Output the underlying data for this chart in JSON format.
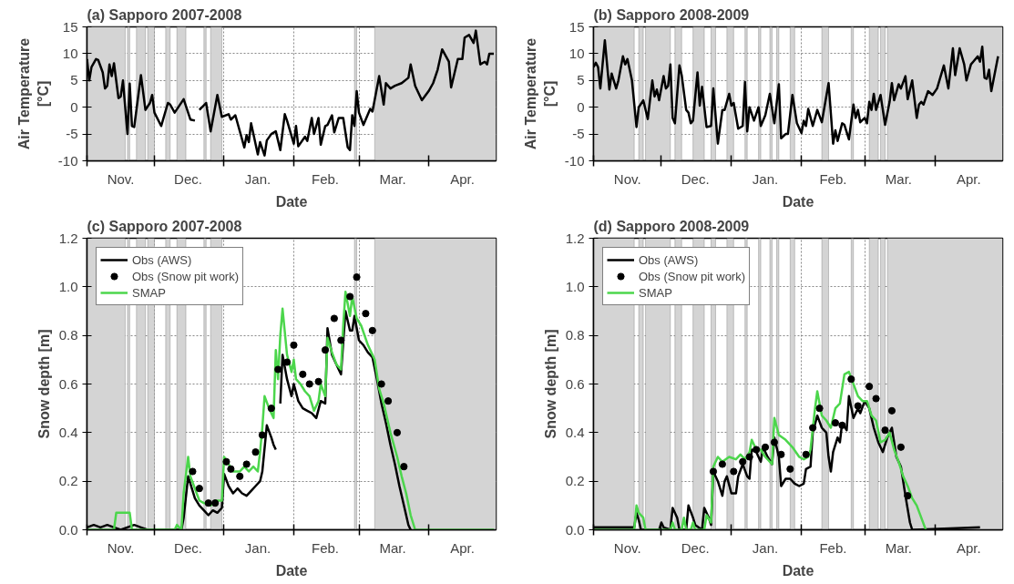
{
  "chart_data": [
    {
      "type": "line",
      "title": "(a) Sapporo 2007-2008",
      "xlabel": "Date",
      "ylabel": "Air Temperature\n[°C]",
      "grid": true,
      "xlim": [
        "2007-11-01",
        "2008-05-01"
      ],
      "xticks": [
        {
          "value": "2007-11-01",
          "label": null
        },
        {
          "value": "2007-12-01",
          "label": null
        },
        {
          "value": "2008-01-01",
          "label": null
        },
        {
          "value": "2008-02-01",
          "label": null
        },
        {
          "value": "2008-03-01",
          "label": null
        },
        {
          "value": "2008-04-01",
          "label": null
        },
        {
          "value": "2007-11-16",
          "label": "Nov."
        },
        {
          "value": "2007-12-16",
          "label": "Dec."
        },
        {
          "value": "2008-01-16",
          "label": "Jan."
        },
        {
          "value": "2008-02-15",
          "label": "Feb."
        },
        {
          "value": "2008-03-16",
          "label": "Mar."
        },
        {
          "value": "2008-04-16",
          "label": "Apr."
        }
      ],
      "ylim": [
        -10,
        15
      ],
      "yticks": [
        -10,
        -5,
        0,
        5,
        10,
        15
      ],
      "bands": [
        {
          "axis": "x",
          "from": "2007-11-01",
          "to": "2007-11-18",
          "color": "#d4d4d4"
        },
        {
          "axis": "x",
          "from": "2007-11-19",
          "to": "2007-11-20",
          "color": "#d4d4d4"
        },
        {
          "axis": "x",
          "from": "2007-11-23",
          "to": "2007-11-27",
          "color": "#d4d4d4"
        },
        {
          "axis": "x",
          "from": "2007-11-28",
          "to": "2007-12-01",
          "color": "#d4d4d4"
        },
        {
          "axis": "x",
          "from": "2007-12-06",
          "to": "2007-12-08",
          "color": "#d4d4d4"
        },
        {
          "axis": "x",
          "from": "2007-12-11",
          "to": "2007-12-15",
          "color": "#d4d4d4"
        },
        {
          "axis": "x",
          "from": "2007-12-23",
          "to": "2007-12-24",
          "color": "#d4d4d4"
        },
        {
          "axis": "x",
          "from": "2007-12-26",
          "to": "2007-12-31",
          "color": "#d4d4d4"
        },
        {
          "axis": "x",
          "from": "2008-02-28",
          "to": "2008-02-29",
          "color": "#d4d4d4"
        },
        {
          "axis": "x",
          "from": "2008-03-08",
          "to": "2008-05-01",
          "color": "#d4d4d4"
        }
      ],
      "series": [
        {
          "color": "#000000",
          "x": [
            "2007-11-01",
            "2007-11-02",
            "2007-11-03",
            "2007-11-05",
            "2007-11-06",
            "2007-11-08",
            "2007-11-09",
            "2007-11-10",
            "2007-11-11",
            "2007-11-12",
            "2007-11-13",
            "2007-11-15",
            "2007-11-16",
            "2007-11-17",
            "2007-11-19",
            "2007-11-20",
            "2007-11-21",
            "2007-11-22",
            "2007-11-25",
            "2007-11-27",
            "2007-11-29",
            "2007-11-30",
            "2007-12-01",
            "2007-12-04",
            "2007-12-07",
            "2007-12-08",
            "2007-12-10",
            "2007-12-14",
            "2007-12-17",
            "2007-12-19",
            "2007-12-20",
            "2007-12-21",
            "2007-12-24",
            "2007-12-26",
            "2007-12-29",
            "2007-12-31",
            "2008-01-03",
            "2008-01-04",
            "2008-01-06",
            "2008-01-10",
            "2008-01-11",
            "2008-01-12",
            "2008-01-13",
            "2008-01-16",
            "2008-01-17",
            "2008-01-19",
            "2008-01-20",
            "2008-01-22",
            "2008-01-24",
            "2008-01-26",
            "2008-01-28",
            "2008-01-29",
            "2008-02-01",
            "2008-02-02",
            "2008-02-03",
            "2008-02-06",
            "2008-02-07",
            "2008-02-09",
            "2008-02-10",
            "2008-02-12",
            "2008-02-13",
            "2008-02-15",
            "2008-02-16",
            "2008-02-18",
            "2008-02-19",
            "2008-02-21",
            "2008-02-23",
            "2008-02-25",
            "2008-02-26",
            "2008-02-27",
            "2008-02-28",
            "2008-02-29",
            "2008-03-01",
            "2008-03-03",
            "2008-03-06",
            "2008-03-07",
            "2008-03-10",
            "2008-03-12",
            "2008-03-13",
            "2008-03-15",
            "2008-03-17",
            "2008-03-20",
            "2008-03-23",
            "2008-03-24",
            "2008-03-26",
            "2008-03-29",
            "2008-04-01",
            "2008-04-03",
            "2008-04-05",
            "2008-04-07",
            "2008-04-10",
            "2008-04-11",
            "2008-04-14",
            "2008-04-16",
            "2008-04-17",
            "2008-04-19",
            "2008-04-21",
            "2008-04-22",
            "2008-04-24",
            "2008-04-26",
            "2008-04-27",
            "2008-04-28",
            "2008-04-30"
          ],
          "values": [
            9,
            5,
            7.5,
            9,
            8.8,
            6.5,
            3.5,
            4,
            8,
            5.8,
            8.2,
            1.7,
            2,
            5,
            -5,
            4.4,
            -3.5,
            -3.7,
            6,
            -0.5,
            0.8,
            2.3,
            -1,
            -3.5,
            0.8,
            0.5,
            -1,
            1.5,
            -2.3,
            -2.5,
            null,
            -0.5,
            0.8,
            -4.5,
            2.3,
            -1.8,
            -1.3,
            -2.3,
            -1.5,
            -7.5,
            -5.2,
            -6.5,
            -3,
            -8.8,
            -6.5,
            -9,
            -6.2,
            -5,
            -4.5,
            -8,
            -1.3,
            -2.5,
            -6.8,
            -3.5,
            -7.3,
            -5.5,
            -6.3,
            -2,
            -5,
            -2,
            -7,
            -3.5,
            -3.3,
            -1.5,
            -4.7,
            -2,
            -2,
            -7.5,
            -8,
            -1.5,
            -3.5,
            3,
            -1,
            -3.3,
            -0.3,
            -0.8,
            5.8,
            0.5,
            4.5,
            3.5,
            4,
            4.5,
            5.5,
            8,
            4,
            1.3,
            3,
            4.5,
            7,
            10.8,
            8.5,
            3.7,
            9,
            9,
            13,
            13.5,
            12,
            14.3,
            8,
            8.5,
            8,
            10,
            10
          ]
        }
      ]
    },
    {
      "type": "line",
      "title": "(b) Sapporo 2008-2009",
      "xlabel": "Date",
      "ylabel": "Air Temperature\n[°C]",
      "grid": true,
      "xlim": [
        "2008-11-01",
        "2009-05-01"
      ],
      "xticks": [
        {
          "value": "2008-11-01",
          "label": null
        },
        {
          "value": "2008-12-01",
          "label": null
        },
        {
          "value": "2009-01-01",
          "label": null
        },
        {
          "value": "2009-02-01",
          "label": null
        },
        {
          "value": "2009-03-01",
          "label": null
        },
        {
          "value": "2009-04-01",
          "label": null
        },
        {
          "value": "2008-11-16",
          "label": "Nov."
        },
        {
          "value": "2008-12-16",
          "label": "Dec."
        },
        {
          "value": "2009-01-16",
          "label": "Jan."
        },
        {
          "value": "2009-02-15",
          "label": "Feb."
        },
        {
          "value": "2009-03-16",
          "label": "Mar."
        },
        {
          "value": "2009-04-16",
          "label": "Apr."
        }
      ],
      "ylim": [
        -10,
        15
      ],
      "yticks": [
        -10,
        -5,
        0,
        5,
        10,
        15
      ],
      "bands": [
        {
          "axis": "x",
          "from": "2008-11-01",
          "to": "2008-11-19",
          "color": "#d4d4d4"
        },
        {
          "axis": "x",
          "from": "2008-11-21",
          "to": "2008-11-23",
          "color": "#d4d4d4"
        },
        {
          "axis": "x",
          "from": "2008-11-24",
          "to": "2008-12-05",
          "color": "#d4d4d4"
        },
        {
          "axis": "x",
          "from": "2008-12-07",
          "to": "2008-12-10",
          "color": "#d4d4d4"
        },
        {
          "axis": "x",
          "from": "2008-12-15",
          "to": "2008-12-20",
          "color": "#d4d4d4"
        },
        {
          "axis": "x",
          "from": "2008-12-23",
          "to": "2008-12-25",
          "color": "#d4d4d4"
        },
        {
          "axis": "x",
          "from": "2008-12-30",
          "to": "2009-01-02",
          "color": "#d4d4d4"
        },
        {
          "axis": "x",
          "from": "2009-01-07",
          "to": "2009-01-08",
          "color": "#d4d4d4"
        },
        {
          "axis": "x",
          "from": "2009-01-13",
          "to": "2009-01-14",
          "color": "#d4d4d4"
        },
        {
          "axis": "x",
          "from": "2009-01-18",
          "to": "2009-01-19",
          "color": "#d4d4d4"
        },
        {
          "axis": "x",
          "from": "2009-01-21",
          "to": "2009-01-22",
          "color": "#d4d4d4"
        },
        {
          "axis": "x",
          "from": "2009-01-27",
          "to": "2009-01-29",
          "color": "#d4d4d4"
        },
        {
          "axis": "x",
          "from": "2009-02-10",
          "to": "2009-02-13",
          "color": "#d4d4d4"
        },
        {
          "axis": "x",
          "from": "2009-02-23",
          "to": "2009-02-24",
          "color": "#d4d4d4"
        },
        {
          "axis": "x",
          "from": "2009-03-03",
          "to": "2009-03-07",
          "color": "#d4d4d4"
        },
        {
          "axis": "x",
          "from": "2009-03-08",
          "to": "2009-03-10",
          "color": "#d4d4d4"
        },
        {
          "axis": "x",
          "from": "2009-03-11",
          "to": "2009-05-01",
          "color": "#d4d4d4"
        }
      ],
      "series": [
        {
          "color": "#000000",
          "x": [
            "2008-11-01",
            "2008-11-02",
            "2008-11-03",
            "2008-11-04",
            "2008-11-06",
            "2008-11-08",
            "2008-11-09",
            "2008-11-11",
            "2008-11-12",
            "2008-11-14",
            "2008-11-15",
            "2008-11-16",
            "2008-11-18",
            "2008-11-20",
            "2008-11-21",
            "2008-11-23",
            "2008-11-25",
            "2008-11-27",
            "2008-11-28",
            "2008-11-29",
            "2008-11-30",
            "2008-12-02",
            "2008-12-03",
            "2008-12-04",
            "2008-12-05",
            "2008-12-06",
            "2008-12-07",
            "2008-12-09",
            "2008-12-10",
            "2008-12-12",
            "2008-12-13",
            "2008-12-14",
            "2008-12-15",
            "2008-12-17",
            "2008-12-18",
            "2008-12-19",
            "2008-12-21",
            "2008-12-23",
            "2008-12-24",
            "2008-12-26",
            "2008-12-28",
            "2008-12-29",
            "2008-12-31",
            "2009-01-01",
            "2009-01-02",
            "2009-01-04",
            "2009-01-06",
            "2009-01-07",
            "2009-01-08",
            "2009-01-09",
            "2009-01-11",
            "2009-01-13",
            "2009-01-14",
            "2009-01-16",
            "2009-01-18",
            "2009-01-20",
            "2009-01-22",
            "2009-01-23",
            "2009-01-25",
            "2009-01-26",
            "2009-01-28",
            "2009-01-30",
            "2009-02-01",
            "2009-02-02",
            "2009-02-03",
            "2009-02-04",
            "2009-02-06",
            "2009-02-08",
            "2009-02-10",
            "2009-02-13",
            "2009-02-15",
            "2009-02-16",
            "2009-02-17",
            "2009-02-19",
            "2009-02-20",
            "2009-02-22",
            "2009-02-24",
            "2009-02-25",
            "2009-02-26",
            "2009-02-27",
            "2009-03-01",
            "2009-03-02",
            "2009-03-03",
            "2009-03-04",
            "2009-03-05",
            "2009-03-06",
            "2009-03-08",
            "2009-03-10",
            "2009-03-12",
            "2009-03-13",
            "2009-03-14",
            "2009-03-16",
            "2009-03-17",
            "2009-03-19",
            "2009-03-20",
            "2009-03-22",
            "2009-03-24",
            "2009-03-25",
            "2009-03-26",
            "2009-03-27",
            "2009-03-29",
            "2009-03-31",
            "2009-04-02",
            "2009-04-05",
            "2009-04-07",
            "2009-04-09",
            "2009-04-10",
            "2009-04-12",
            "2009-04-14",
            "2009-04-15",
            "2009-04-17",
            "2009-04-18",
            "2009-04-20",
            "2009-04-21",
            "2009-04-22",
            "2009-04-23",
            "2009-04-24",
            "2009-04-25",
            "2009-04-26",
            "2009-04-29"
          ],
          "values": [
            7.5,
            8.3,
            7.5,
            3.5,
            12.5,
            3.3,
            6.3,
            3.5,
            5,
            9.5,
            8,
            9,
            5,
            -3.7,
            0,
            1.3,
            -2.2,
            5,
            2,
            3.3,
            1.3,
            5.8,
            3.5,
            4,
            8,
            -2,
            -3,
            7.8,
            6,
            -0.5,
            -1,
            -3,
            -2.5,
            6.5,
            0.3,
            3.8,
            -3.7,
            -3.5,
            3.5,
            -6.8,
            -0.5,
            -0.5,
            2.5,
            0.3,
            0.8,
            -4,
            -3.5,
            4.7,
            -4.5,
            0,
            -2.5,
            0,
            -3.5,
            -1.5,
            2.5,
            -3,
            4.3,
            -5.8,
            -5,
            -5,
            2.3,
            -3,
            -4.8,
            -2.5,
            -3.5,
            -0.3,
            -3.5,
            -0.5,
            -2.8,
            4.5,
            -6.8,
            -4.3,
            -6.3,
            -3,
            -3.3,
            -6,
            0.5,
            -2,
            -0.5,
            -2.8,
            -2,
            -3,
            1,
            -0.5,
            2.5,
            -0.5,
            2.3,
            -3.3,
            1,
            4.5,
            1.3,
            4.3,
            3.5,
            5.8,
            1.5,
            5,
            -2,
            0.5,
            1,
            0.5,
            3,
            2.3,
            3.5,
            7.8,
            3.5,
            11,
            6,
            11,
            8,
            5,
            8,
            8.5,
            9.5,
            8.5,
            11.3,
            5.5,
            5.3,
            7,
            3,
            9.5
          ]
        }
      ]
    },
    {
      "type": "line",
      "title": "(c) Sapporo 2007-2008",
      "xlabel": "Date",
      "ylabel": "Snow depth [m]",
      "grid": true,
      "legend": "top left",
      "xlim": [
        "2007-11-01",
        "2008-05-01"
      ],
      "xticks": [
        {
          "value": "2007-11-01",
          "label": null
        },
        {
          "value": "2007-12-01",
          "label": null
        },
        {
          "value": "2008-01-01",
          "label": null
        },
        {
          "value": "2008-02-01",
          "label": null
        },
        {
          "value": "2008-03-01",
          "label": null
        },
        {
          "value": "2008-04-01",
          "label": null
        },
        {
          "value": "2007-11-16",
          "label": "Nov."
        },
        {
          "value": "2007-12-16",
          "label": "Dec."
        },
        {
          "value": "2008-01-16",
          "label": "Jan."
        },
        {
          "value": "2008-02-15",
          "label": "Feb."
        },
        {
          "value": "2008-03-16",
          "label": "Mar."
        },
        {
          "value": "2008-04-16",
          "label": "Apr."
        }
      ],
      "ylim": [
        0,
        1.2
      ],
      "yticks": [
        {
          "value": 0,
          "label": "0.0"
        },
        {
          "value": 0.2,
          "label": "0.2"
        },
        {
          "value": 0.4,
          "label": "0.4"
        },
        {
          "value": 0.6,
          "label": "0.6"
        },
        {
          "value": 0.8,
          "label": "0.8"
        },
        {
          "value": 1,
          "label": "1.0"
        },
        {
          "value": 1.2,
          "label": "1.2"
        }
      ],
      "bands": [
        {
          "axis": "x",
          "from": "2007-11-01",
          "to": "2007-11-18",
          "color": "#d4d4d4"
        },
        {
          "axis": "x",
          "from": "2007-11-19",
          "to": "2007-11-20",
          "color": "#d4d4d4"
        },
        {
          "axis": "x",
          "from": "2007-11-23",
          "to": "2007-11-27",
          "color": "#d4d4d4"
        },
        {
          "axis": "x",
          "from": "2007-11-28",
          "to": "2007-12-01",
          "color": "#d4d4d4"
        },
        {
          "axis": "x",
          "from": "2007-12-06",
          "to": "2007-12-08",
          "color": "#d4d4d4"
        },
        {
          "axis": "x",
          "from": "2007-12-11",
          "to": "2007-12-15",
          "color": "#d4d4d4"
        },
        {
          "axis": "x",
          "from": "2007-12-23",
          "to": "2007-12-24",
          "color": "#d4d4d4"
        },
        {
          "axis": "x",
          "from": "2007-12-26",
          "to": "2007-12-31",
          "color": "#d4d4d4"
        },
        {
          "axis": "x",
          "from": "2008-02-28",
          "to": "2008-02-29",
          "color": "#d4d4d4"
        },
        {
          "axis": "x",
          "from": "2008-03-08",
          "to": "2008-05-01",
          "color": "#d4d4d4"
        }
      ],
      "series": [
        {
          "name": "Obs (AWS)",
          "color": "#000000",
          "x": [
            "2007-11-01",
            "2007-11-04",
            "2007-11-07",
            "2007-11-10",
            "2007-11-13",
            "2007-11-16",
            "2007-11-22",
            "2007-11-25",
            "2007-11-28",
            "2007-12-13",
            "2007-12-14",
            "2007-12-16",
            "2007-12-19",
            "2007-12-21",
            "2007-12-23",
            "2007-12-25",
            "2007-12-27",
            "2007-12-29",
            "2007-12-31",
            "2008-01-01",
            "2008-01-03",
            "2008-01-05",
            "2008-01-07",
            "2008-01-09",
            "2008-01-11",
            "2008-01-13",
            "2008-01-15",
            "2008-01-17",
            "2008-01-18",
            "2008-01-20",
            "2008-01-22",
            "2008-01-23",
            "2008-01-24",
            "2008-01-25",
            "2008-01-26",
            "2008-01-27",
            "2008-01-29",
            "2008-01-31",
            "2008-02-01",
            "2008-02-03",
            "2008-02-05",
            "2008-02-07",
            "2008-02-09",
            "2008-02-11",
            "2008-02-13",
            "2008-02-15",
            "2008-02-16",
            "2008-02-18",
            "2008-02-20",
            "2008-02-22",
            "2008-02-24",
            "2008-02-26",
            "2008-02-27",
            "2008-02-28",
            "2008-03-01",
            "2008-03-03",
            "2008-03-05",
            "2008-03-07",
            "2008-03-09",
            "2008-03-11",
            "2008-03-13",
            "2008-03-15",
            "2008-03-17",
            "2008-03-19",
            "2008-03-21",
            "2008-03-23",
            "2008-03-24"
          ],
          "values": [
            0.01,
            0.02,
            0.01,
            0.02,
            0.01,
            0,
            0.02,
            0.01,
            0,
            0,
            0.05,
            0.22,
            0.13,
            0.1,
            0.08,
            0.06,
            0.08,
            0.07,
            0.09,
            0.23,
            0.18,
            0.15,
            0.17,
            0.15,
            0.14,
            0.16,
            0.18,
            0.2,
            0.24,
            0.43,
            0.38,
            0.35,
            0.33,
            null,
            0.52,
            0.72,
            0.62,
            0.55,
            0.6,
            0.53,
            0.5,
            0.49,
            0.48,
            0.46,
            0.53,
            0.52,
            0.83,
            0.72,
            0.68,
            0.64,
            0.9,
            0.82,
            0.82,
            0.88,
            0.78,
            0.76,
            0.73,
            0.71,
            0.62,
            0.52,
            0.44,
            0.35,
            0.27,
            0.18,
            0.1,
            0.02,
            0
          ]
        },
        {
          "name": "Obs (Snow pit work)",
          "type": "scatter",
          "marker": "circle",
          "color": "#000000",
          "x": [
            "2007-12-18",
            "2007-12-21",
            "2007-12-25",
            "2007-12-28",
            "2008-01-02",
            "2008-01-04",
            "2008-01-08",
            "2008-01-11",
            "2008-01-15",
            "2008-01-18",
            "2008-01-22",
            "2008-01-25",
            "2008-01-29",
            "2008-02-01",
            "2008-02-05",
            "2008-02-08",
            "2008-02-12",
            "2008-02-15",
            "2008-02-19",
            "2008-02-22",
            "2008-02-26",
            "2008-02-29",
            "2008-03-04",
            "2008-03-07",
            "2008-03-11",
            "2008-03-14",
            "2008-03-18",
            "2008-03-21"
          ],
          "values": [
            0.24,
            0.17,
            0.11,
            0.11,
            0.28,
            0.25,
            0.22,
            0.27,
            0.32,
            0.39,
            0.5,
            0.66,
            0.69,
            0.76,
            0.64,
            0.6,
            0.61,
            0.74,
            0.87,
            0.78,
            0.96,
            1.04,
            0.89,
            0.82,
            0.6,
            0.53,
            0.4,
            0.26
          ]
        },
        {
          "name": "SMAP",
          "color": "#4cd64c",
          "x": [
            "2007-11-01",
            "2007-11-13",
            "2007-11-14",
            "2007-11-15",
            "2007-11-20",
            "2007-11-21",
            "2007-12-10",
            "2007-12-11",
            "2007-12-13",
            "2007-12-14",
            "2007-12-16",
            "2007-12-17",
            "2007-12-19",
            "2007-12-21",
            "2007-12-23",
            "2007-12-26",
            "2007-12-28",
            "2007-12-31",
            "2008-01-01",
            "2008-01-03",
            "2008-01-05",
            "2008-01-08",
            "2008-01-10",
            "2008-01-12",
            "2008-01-14",
            "2008-01-16",
            "2008-01-17",
            "2008-01-18",
            "2008-01-19",
            "2008-01-21",
            "2008-01-23",
            "2008-01-24",
            "2008-01-25",
            "2008-01-26",
            "2008-01-27",
            "2008-01-29",
            "2008-01-31",
            "2008-02-01",
            "2008-02-02",
            "2008-02-04",
            "2008-02-06",
            "2008-02-08",
            "2008-02-10",
            "2008-02-12",
            "2008-02-13",
            "2008-02-15",
            "2008-02-16",
            "2008-02-18",
            "2008-02-20",
            "2008-02-22",
            "2008-02-23",
            "2008-02-24",
            "2008-02-26",
            "2008-02-27",
            "2008-02-29",
            "2008-03-02",
            "2008-03-05",
            "2008-03-08",
            "2008-03-10",
            "2008-03-12",
            "2008-03-15",
            "2008-03-18",
            "2008-03-20",
            "2008-03-22",
            "2008-03-24",
            "2008-03-26",
            "2008-04-30"
          ],
          "values": [
            0,
            0,
            0.07,
            0.07,
            0.07,
            0,
            0,
            0.02,
            0,
            0.15,
            0.3,
            0.22,
            0.17,
            0.12,
            0.11,
            0.1,
            0.12,
            0.12,
            0.3,
            0.27,
            0.24,
            0.24,
            0.26,
            0.24,
            0.26,
            0.24,
            0.32,
            0.42,
            0.55,
            0.5,
            0.46,
            0.74,
            0.62,
            0.8,
            0.91,
            0.72,
            0.65,
            0.7,
            0.62,
            0.6,
            0.57,
            0.55,
            0.49,
            0.53,
            0.6,
            0.55,
            0.79,
            0.73,
            0.68,
            0.66,
            0.84,
            0.98,
            0.88,
            0.96,
            0.87,
            0.84,
            0.76,
            0.7,
            0.58,
            0.52,
            0.4,
            0.3,
            0.22,
            0.15,
            0.06,
            0,
            0
          ]
        }
      ]
    },
    {
      "type": "line",
      "title": "(d) Sapporo 2008-2009",
      "xlabel": "Date",
      "ylabel": "Snow depth [m]",
      "grid": true,
      "legend": "top left",
      "xlim": [
        "2008-11-01",
        "2009-05-01"
      ],
      "xticks": [
        {
          "value": "2008-11-01",
          "label": null
        },
        {
          "value": "2008-12-01",
          "label": null
        },
        {
          "value": "2009-01-01",
          "label": null
        },
        {
          "value": "2009-02-01",
          "label": null
        },
        {
          "value": "2009-03-01",
          "label": null
        },
        {
          "value": "2009-04-01",
          "label": null
        },
        {
          "value": "2008-11-16",
          "label": "Nov."
        },
        {
          "value": "2008-12-16",
          "label": "Dec."
        },
        {
          "value": "2009-01-16",
          "label": "Jan."
        },
        {
          "value": "2009-02-15",
          "label": "Feb."
        },
        {
          "value": "2009-03-16",
          "label": "Mar."
        },
        {
          "value": "2009-04-16",
          "label": "Apr."
        }
      ],
      "ylim": [
        0,
        1.2
      ],
      "yticks": [
        {
          "value": 0,
          "label": "0.0"
        },
        {
          "value": 0.2,
          "label": "0.2"
        },
        {
          "value": 0.4,
          "label": "0.4"
        },
        {
          "value": 0.6,
          "label": "0.6"
        },
        {
          "value": 0.8,
          "label": "0.8"
        },
        {
          "value": 1,
          "label": "1.0"
        },
        {
          "value": 1.2,
          "label": "1.2"
        }
      ],
      "bands": [
        {
          "axis": "x",
          "from": "2008-11-01",
          "to": "2008-11-19",
          "color": "#d4d4d4"
        },
        {
          "axis": "x",
          "from": "2008-11-21",
          "to": "2008-11-23",
          "color": "#d4d4d4"
        },
        {
          "axis": "x",
          "from": "2008-11-24",
          "to": "2008-12-05",
          "color": "#d4d4d4"
        },
        {
          "axis": "x",
          "from": "2008-12-07",
          "to": "2008-12-10",
          "color": "#d4d4d4"
        },
        {
          "axis": "x",
          "from": "2008-12-15",
          "to": "2008-12-20",
          "color": "#d4d4d4"
        },
        {
          "axis": "x",
          "from": "2008-12-23",
          "to": "2008-12-25",
          "color": "#d4d4d4"
        },
        {
          "axis": "x",
          "from": "2008-12-30",
          "to": "2009-01-02",
          "color": "#d4d4d4"
        },
        {
          "axis": "x",
          "from": "2009-01-07",
          "to": "2009-01-08",
          "color": "#d4d4d4"
        },
        {
          "axis": "x",
          "from": "2009-01-13",
          "to": "2009-01-14",
          "color": "#d4d4d4"
        },
        {
          "axis": "x",
          "from": "2009-01-18",
          "to": "2009-01-19",
          "color": "#d4d4d4"
        },
        {
          "axis": "x",
          "from": "2009-01-21",
          "to": "2009-01-22",
          "color": "#d4d4d4"
        },
        {
          "axis": "x",
          "from": "2009-01-27",
          "to": "2009-01-29",
          "color": "#d4d4d4"
        },
        {
          "axis": "x",
          "from": "2009-02-10",
          "to": "2009-02-13",
          "color": "#d4d4d4"
        },
        {
          "axis": "x",
          "from": "2009-02-23",
          "to": "2009-02-24",
          "color": "#d4d4d4"
        },
        {
          "axis": "x",
          "from": "2009-03-03",
          "to": "2009-03-07",
          "color": "#d4d4d4"
        },
        {
          "axis": "x",
          "from": "2009-03-08",
          "to": "2009-03-10",
          "color": "#d4d4d4"
        },
        {
          "axis": "x",
          "from": "2009-03-11",
          "to": "2009-05-01",
          "color": "#d4d4d4"
        }
      ],
      "series": [
        {
          "name": "Obs (AWS)",
          "color": "#000000",
          "x": [
            "2008-11-01",
            "2008-11-10",
            "2008-11-19",
            "2008-11-20",
            "2008-11-21",
            "2008-11-22",
            "2008-11-30",
            "2008-12-01",
            "2008-12-02",
            "2008-12-05",
            "2008-12-06",
            "2008-12-08",
            "2008-12-09",
            "2008-12-12",
            "2008-12-13",
            "2008-12-15",
            "2008-12-16",
            "2008-12-19",
            "2008-12-20",
            "2008-12-22",
            "2008-12-23",
            "2008-12-24",
            "2008-12-26",
            "2008-12-28",
            "2008-12-29",
            "2008-12-30",
            "2009-01-01",
            "2009-01-03",
            "2009-01-04",
            "2009-01-06",
            "2009-01-08",
            "2009-01-09",
            "2009-01-10",
            "2009-01-12",
            "2009-01-14",
            "2009-01-15",
            "2009-01-17",
            "2009-01-19",
            "2009-01-20",
            "2009-01-22",
            "2009-01-23",
            "2009-01-25",
            "2009-01-27",
            "2009-01-29",
            "2009-01-31",
            "2009-02-02",
            "2009-02-03",
            "2009-02-05",
            "2009-02-06",
            "2009-02-08",
            "2009-02-10",
            "2009-02-12",
            "2009-02-13",
            "2009-02-14",
            "2009-02-15",
            "2009-02-17",
            "2009-02-18",
            "2009-02-19",
            "2009-02-21",
            "2009-02-22",
            "2009-02-24",
            "2009-02-26",
            "2009-02-27",
            "2009-03-01",
            "2009-03-03",
            "2009-03-05",
            "2009-03-07",
            "2009-03-09",
            "2009-03-11",
            "2009-03-13",
            "2009-03-15",
            "2009-03-17",
            "2009-03-19",
            "2009-03-21",
            "2009-03-22",
            "2009-04-21"
          ],
          "values": [
            0.01,
            0.01,
            0.01,
            0.07,
            0.04,
            0,
            0,
            0.03,
            0.01,
            0,
            0.09,
            0.05,
            0,
            0,
            0.1,
            0.05,
            0.02,
            0,
            0.09,
            0.05,
            0.02,
            0.24,
            0.2,
            0.14,
            0.2,
            0.22,
            0.15,
            0.15,
            0.22,
            0.27,
            0.22,
            0.21,
            0.33,
            0.32,
            0.28,
            0.34,
            0.3,
            0.27,
            0.38,
            0.3,
            0.18,
            0.21,
            0.21,
            0.19,
            0.18,
            0.19,
            0.25,
            0.26,
            0.4,
            0.47,
            0.42,
            0.4,
            0.3,
            0.24,
            0.32,
            0.38,
            0.36,
            0.44,
            0.41,
            0.55,
            0.46,
            0.5,
            0.48,
            0.53,
            0.5,
            0.42,
            0.36,
            0.32,
            0.38,
            0.42,
            0.3,
            0.26,
            0.14,
            0.03,
            0,
            0.01
          ]
        },
        {
          "name": "Obs (Snow pit work)",
          "type": "scatter",
          "marker": "circle",
          "color": "#000000",
          "x": [
            "2008-12-24",
            "2008-12-28",
            "2009-01-02",
            "2009-01-06",
            "2009-01-09",
            "2009-01-12",
            "2009-01-16",
            "2009-01-20",
            "2009-01-23",
            "2009-01-27",
            "2009-02-03",
            "2009-02-06",
            "2009-02-09",
            "2009-02-16",
            "2009-02-19",
            "2009-02-23",
            "2009-02-26",
            "2009-03-03",
            "2009-03-06",
            "2009-03-10",
            "2009-03-13",
            "2009-03-17",
            "2009-03-20"
          ],
          "values": [
            0.24,
            0.27,
            0.24,
            0.28,
            0.3,
            0.33,
            0.34,
            0.36,
            0.31,
            0.25,
            0.31,
            0.42,
            0.5,
            0.44,
            0.43,
            0.62,
            0.51,
            0.59,
            0.54,
            0.41,
            0.49,
            0.34,
            0.14
          ]
        },
        {
          "name": "SMAP",
          "color": "#4cd64c",
          "x": [
            "2008-11-01",
            "2008-11-19",
            "2008-11-20",
            "2008-11-21",
            "2008-11-23",
            "2008-11-24",
            "2008-12-05",
            "2008-12-06",
            "2008-12-07",
            "2008-12-10",
            "2008-12-11",
            "2008-12-12",
            "2008-12-14",
            "2008-12-15",
            "2008-12-16",
            "2008-12-20",
            "2008-12-21",
            "2008-12-23",
            "2008-12-24",
            "2008-12-26",
            "2008-12-28",
            "2008-12-31",
            "2009-01-03",
            "2009-01-05",
            "2009-01-07",
            "2009-01-09",
            "2009-01-10",
            "2009-01-12",
            "2009-01-14",
            "2009-01-16",
            "2009-01-19",
            "2009-01-20",
            "2009-01-22",
            "2009-01-25",
            "2009-01-28",
            "2009-01-31",
            "2009-02-02",
            "2009-02-04",
            "2009-02-05",
            "2009-02-07",
            "2009-02-08",
            "2009-02-10",
            "2009-02-12",
            "2009-02-14",
            "2009-02-16",
            "2009-02-18",
            "2009-02-20",
            "2009-02-22",
            "2009-02-24",
            "2009-02-26",
            "2009-02-28",
            "2009-03-02",
            "2009-03-04",
            "2009-03-06",
            "2009-03-08",
            "2009-03-10",
            "2009-03-12",
            "2009-03-14",
            "2009-03-16",
            "2009-03-18",
            "2009-03-20",
            "2009-03-22",
            "2009-03-24",
            "2009-03-26",
            "2009-03-28"
          ],
          "values": [
            0,
            0,
            0.1,
            0.07,
            0.05,
            0,
            0,
            0.03,
            0,
            0,
            0.05,
            0,
            0,
            0.03,
            0,
            0,
            0.06,
            0.03,
            0.26,
            0.3,
            0.28,
            0.3,
            0.29,
            0.31,
            0.29,
            0.32,
            0.37,
            0.33,
            0.33,
            0.3,
            0.27,
            0.46,
            0.39,
            0.37,
            0.34,
            0.3,
            0.29,
            0.3,
            0.33,
            0.5,
            0.57,
            0.47,
            0.45,
            0.42,
            0.5,
            0.52,
            0.64,
            0.65,
            0.6,
            0.55,
            0.53,
            0.53,
            0.47,
            0.45,
            0.36,
            0.37,
            0.4,
            0.33,
            0.28,
            0.22,
            0.18,
            0.13,
            0.1,
            0.05,
            0
          ]
        }
      ]
    }
  ]
}
